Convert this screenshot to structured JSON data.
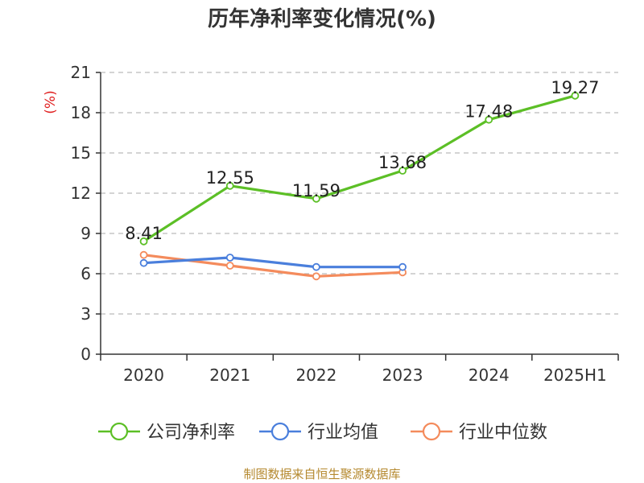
{
  "title": "历年净利率变化情况(%)",
  "source": "制图数据来自恒生聚源数据库",
  "colors": {
    "company": "#5cbf26",
    "industry_avg": "#4a7fdc",
    "industry_median": "#f48b5c",
    "unit_label": "#e02020"
  },
  "chart_data": {
    "type": "line",
    "categories": [
      "2020",
      "2021",
      "2022",
      "2023",
      "2024",
      "2025H1"
    ],
    "ylabel": "(%)",
    "ylim": [
      0,
      21
    ],
    "yticks": [
      0,
      3,
      6,
      9,
      12,
      15,
      18,
      21
    ],
    "grid": true,
    "legend_position": "bottom",
    "series": [
      {
        "name": "公司净利率",
        "color_key": "company",
        "values": [
          8.41,
          12.55,
          11.59,
          13.68,
          17.48,
          19.27
        ],
        "labels": [
          "8.41",
          "12.55",
          "11.59",
          "13.68",
          "17.48",
          "19.27"
        ]
      },
      {
        "name": "行业均值",
        "color_key": "industry_avg",
        "values": [
          6.8,
          7.2,
          6.5,
          6.5,
          null,
          null
        ]
      },
      {
        "name": "行业中位数",
        "color_key": "industry_median",
        "values": [
          7.4,
          6.6,
          5.8,
          6.1,
          null,
          null
        ]
      }
    ]
  }
}
